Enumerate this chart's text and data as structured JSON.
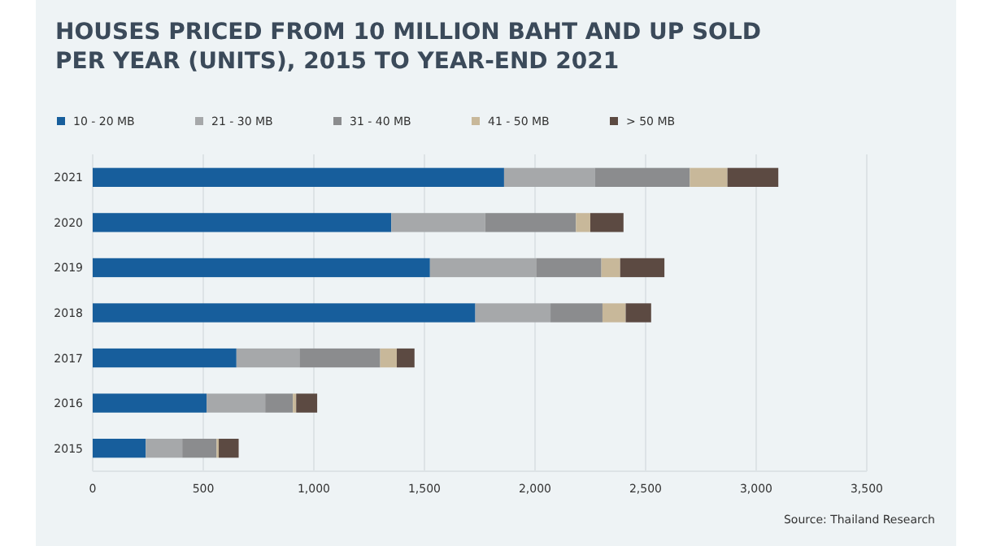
{
  "chart_data": {
    "type": "bar",
    "orientation": "horizontal",
    "stacked": true,
    "title": "HOUSES PRICED FROM 10 MILLION BAHT AND UP SOLD\nPER YEAR (UNITS), 2015 TO YEAR-END 2021",
    "categories": [
      "2021",
      "2020",
      "2019",
      "2018",
      "2017",
      "2016",
      "2015"
    ],
    "series": [
      {
        "name": "10 - 20 MB",
        "color": "#175e9c",
        "values": [
          1860,
          1350,
          1525,
          1730,
          650,
          515,
          240
        ]
      },
      {
        "name": "21 - 30 MB",
        "color": "#a6a8aa",
        "values": [
          410,
          425,
          480,
          340,
          285,
          265,
          165
        ]
      },
      {
        "name": "31 - 40 MB",
        "color": "#8b8c8e",
        "values": [
          430,
          410,
          295,
          235,
          365,
          125,
          155
        ]
      },
      {
        "name": "41 - 50 MB",
        "color": "#c8b89a",
        "values": [
          170,
          65,
          85,
          105,
          75,
          15,
          10
        ]
      },
      {
        "name": "> 50 MB",
        "color": "#5c4a42",
        "values": [
          230,
          150,
          200,
          115,
          80,
          95,
          90
        ]
      }
    ],
    "xlim": [
      0,
      3500
    ],
    "xticks": [
      0,
      {
        "value": 500,
        "label": "500"
      },
      {
        "value": 1000,
        "label": "1,000"
      },
      {
        "value": 1500,
        "label": "1,500"
      },
      {
        "value": 2000,
        "label": "2,000"
      },
      {
        "value": 2500,
        "label": "2,500"
      },
      {
        "value": 3000,
        "label": "3,000"
      },
      {
        "value": 3500,
        "label": "3,500"
      }
    ],
    "grid": "x",
    "legend": "top left",
    "annotations": [
      "Source: Thailand Research"
    ]
  }
}
